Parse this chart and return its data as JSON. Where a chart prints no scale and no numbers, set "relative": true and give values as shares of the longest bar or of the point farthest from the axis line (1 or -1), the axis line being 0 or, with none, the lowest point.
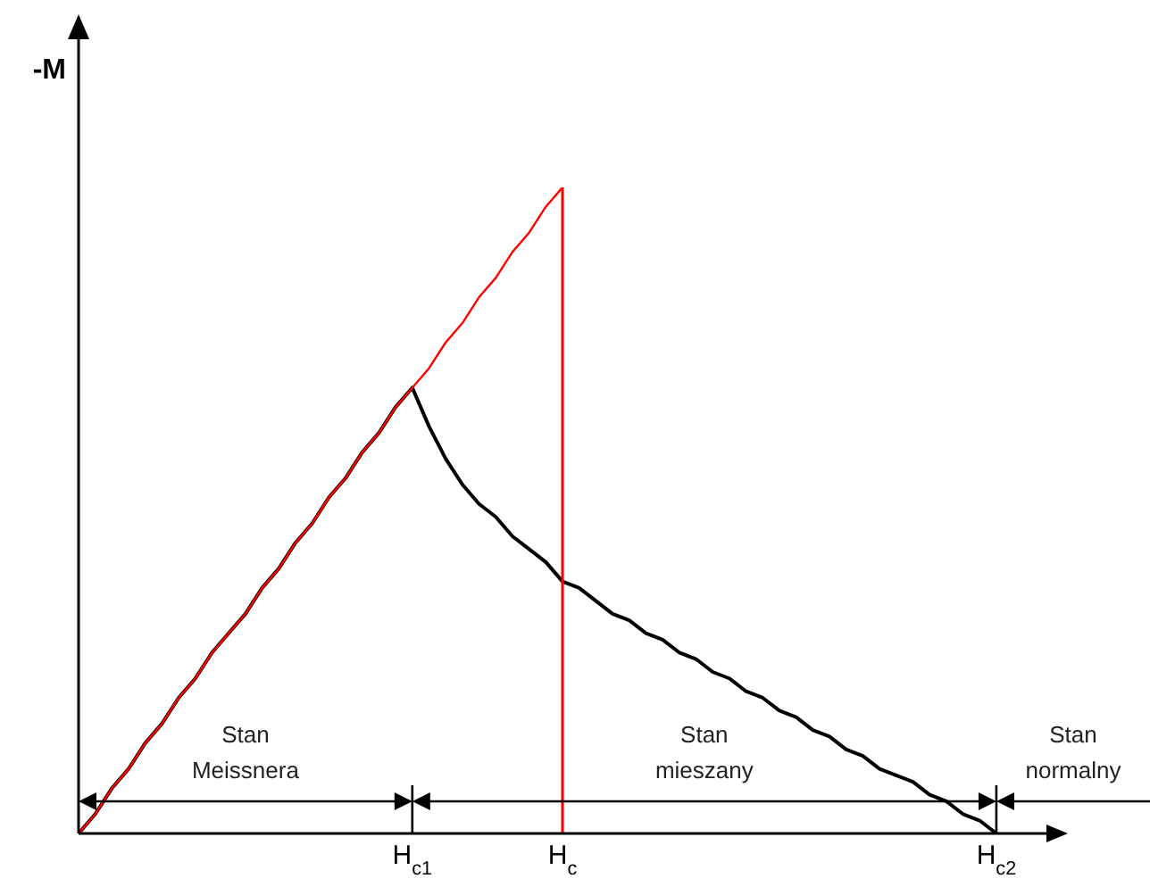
{
  "chart_data": {
    "type": "line",
    "ylabel": "-M",
    "relative": true,
    "marker": "none",
    "categories": [
      null,
      null,
      null,
      null,
      null,
      null,
      null,
      null,
      null,
      null,
      null,
      null,
      null,
      null,
      null,
      null,
      null,
      null,
      null,
      null,
      "H$_{c1}$",
      null,
      null,
      null,
      null,
      null,
      null,
      null,
      null,
      "H$_{c}$",
      null,
      null,
      null,
      null,
      null,
      null,
      null,
      null,
      null,
      null,
      null,
      null,
      null,
      null,
      null,
      null,
      null,
      null,
      null,
      null,
      null,
      null,
      null,
      null,
      null,
      "H$_{c2}$",
      null,
      null,
      null
    ],
    "series": [
      {
        "color": "#000000",
        "values": [
          0,
          0.03,
          0.07,
          0.1,
          0.14,
          0.17,
          0.21,
          0.24,
          0.28,
          0.31,
          0.34,
          0.38,
          0.41,
          0.45,
          0.48,
          0.52,
          0.55,
          0.59,
          0.62,
          0.66,
          0.69,
          0.63,
          0.58,
          0.54,
          0.51,
          0.49,
          0.46,
          0.44,
          0.42,
          0.39,
          0.38,
          0.36,
          0.34,
          0.33,
          0.31,
          0.3,
          0.28,
          0.27,
          0.25,
          0.24,
          0.22,
          0.21,
          0.19,
          0.18,
          0.16,
          0.15,
          0.13,
          0.12,
          0.1,
          0.09,
          0.08,
          0.06,
          0.05,
          0.03,
          0.02,
          0,
          null,
          null,
          null
        ]
      },
      {
        "color": "#ff0000",
        "values": [
          0,
          0.03,
          0.07,
          0.1,
          0.14,
          0.17,
          0.21,
          0.24,
          0.28,
          0.31,
          0.34,
          0.38,
          0.41,
          0.45,
          0.48,
          0.52,
          0.55,
          0.59,
          0.62,
          0.66,
          0.69,
          0.72,
          0.76,
          0.79,
          0.83,
          0.86,
          0.9,
          0.93,
          0.97,
          1,
          null,
          null,
          null,
          null,
          null,
          null,
          null,
          null,
          null,
          null,
          null,
          null,
          null,
          null,
          null,
          null,
          null,
          null,
          null,
          null,
          null,
          null,
          null,
          null,
          null,
          null,
          null,
          null,
          null
        ]
      }
    ],
    "ref_lines": [
      {
        "axis": "x",
        "value": "H$_{c}$",
        "color": "#ff0000"
      }
    ],
    "annotations": [
      "Stan Meissnera",
      "Stan mieszany",
      "Stan normalny"
    ]
  }
}
